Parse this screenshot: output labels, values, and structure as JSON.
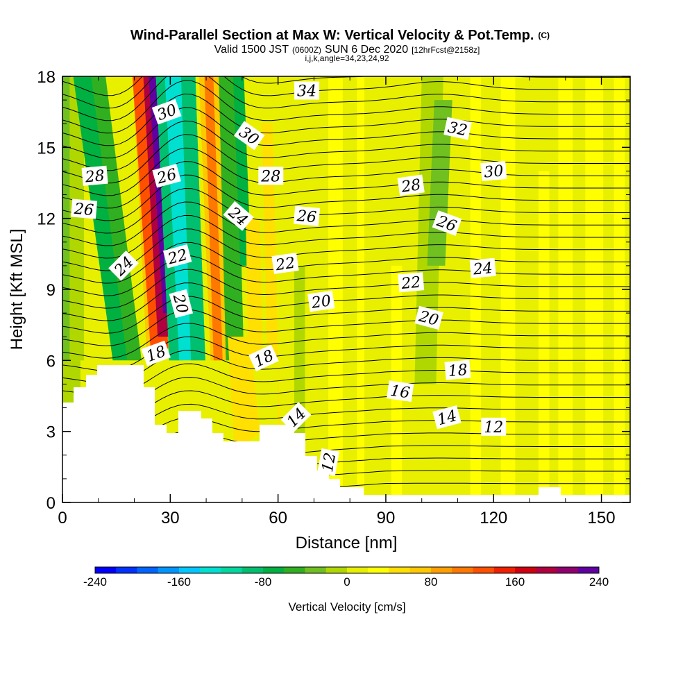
{
  "title": {
    "main": "Wind-Parallel Section at Max W: Vertical Velocity & Pot.Temp.",
    "main_suffix": "(C)",
    "valid_prefix": "Valid 1500 JST",
    "valid_z": "(0600Z)",
    "valid_date": "SUN 6 Dec 2020",
    "valid_fcst": "[12hrFcst@2158z]",
    "indices": "i,j,k,angle=34,23,24,92"
  },
  "chart_data": {
    "type": "heatmap",
    "xlabel": "Distance [nm]",
    "ylabel": "Height [Kft MSL]",
    "xlim": [
      0,
      158
    ],
    "ylim": [
      0,
      18
    ],
    "x_ticks": [
      0,
      30,
      60,
      90,
      120,
      150
    ],
    "y_ticks": [
      0,
      3,
      6,
      9,
      12,
      15,
      18
    ],
    "colorbar": {
      "label": "Vertical Velocity [cm/s]",
      "min": -240,
      "max": 240,
      "tick_values": [
        -240,
        -160,
        -80,
        0,
        80,
        160,
        240
      ],
      "tick_labels": [
        "-240",
        "-160",
        "-80",
        "0",
        "80",
        "160",
        "240"
      ],
      "colors": [
        "#0000ff",
        "#0032ff",
        "#0064ff",
        "#0096ff",
        "#00c8ff",
        "#00e0d0",
        "#00d8a0",
        "#00c070",
        "#00b040",
        "#30b020",
        "#70c020",
        "#b0d800",
        "#e8f000",
        "#ffff00",
        "#ffe000",
        "#ffc800",
        "#ffa000",
        "#ff7800",
        "#ff5000",
        "#f02000",
        "#d00010",
        "#b00040",
        "#900070",
        "#6000a0"
      ]
    },
    "isentrope_labels": [
      {
        "text": "34",
        "x": 68,
        "y": 17.4,
        "angle": 0
      },
      {
        "text": "30",
        "x": 29,
        "y": 16.5,
        "angle": -20
      },
      {
        "text": "30",
        "x": 52,
        "y": 15.5,
        "angle": 35
      },
      {
        "text": "32",
        "x": 110,
        "y": 15.8,
        "angle": 12
      },
      {
        "text": "28",
        "x": 9,
        "y": 13.8,
        "angle": -5
      },
      {
        "text": "26",
        "x": 29,
        "y": 13.8,
        "angle": -15
      },
      {
        "text": "28",
        "x": 58,
        "y": 13.8,
        "angle": 0
      },
      {
        "text": "28",
        "x": 97,
        "y": 13.4,
        "angle": -8
      },
      {
        "text": "30",
        "x": 120,
        "y": 14.0,
        "angle": -5
      },
      {
        "text": "26",
        "x": 6,
        "y": 12.4,
        "angle": 5
      },
      {
        "text": "24",
        "x": 49,
        "y": 12.1,
        "angle": 40
      },
      {
        "text": "26",
        "x": 68,
        "y": 12.1,
        "angle": 5
      },
      {
        "text": "26",
        "x": 107,
        "y": 11.8,
        "angle": 20
      },
      {
        "text": "24",
        "x": 17,
        "y": 10.0,
        "angle": -45
      },
      {
        "text": "22",
        "x": 32,
        "y": 10.4,
        "angle": -15
      },
      {
        "text": "22",
        "x": 62,
        "y": 10.1,
        "angle": -8
      },
      {
        "text": "24",
        "x": 117,
        "y": 9.9,
        "angle": -5
      },
      {
        "text": "22",
        "x": 97,
        "y": 9.3,
        "angle": -5
      },
      {
        "text": "20",
        "x": 33,
        "y": 8.4,
        "angle": 75
      },
      {
        "text": "20",
        "x": 72,
        "y": 8.5,
        "angle": -8
      },
      {
        "text": "20",
        "x": 102,
        "y": 7.8,
        "angle": 15
      },
      {
        "text": "18",
        "x": 26,
        "y": 6.3,
        "angle": -20
      },
      {
        "text": "18",
        "x": 56,
        "y": 6.1,
        "angle": -25
      },
      {
        "text": "18",
        "x": 110,
        "y": 5.6,
        "angle": -5
      },
      {
        "text": "16",
        "x": 94,
        "y": 4.7,
        "angle": 8
      },
      {
        "text": "14",
        "x": 65,
        "y": 3.6,
        "angle": -45
      },
      {
        "text": "14",
        "x": 107,
        "y": 3.6,
        "angle": -15
      },
      {
        "text": "12",
        "x": 120,
        "y": 3.2,
        "angle": 0
      },
      {
        "text": "12",
        "x": 74,
        "y": 1.7,
        "angle": -80
      }
    ]
  }
}
